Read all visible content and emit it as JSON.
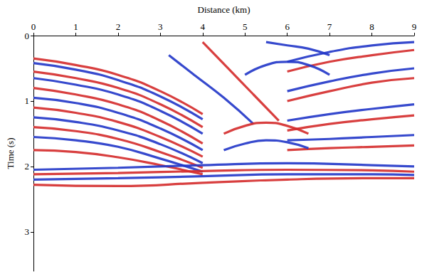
{
  "chart_data": {
    "type": "line",
    "xlabel": "Distance (km)",
    "ylabel": "Time (s)",
    "xlim": [
      0,
      9
    ],
    "ylim": [
      0,
      3.6
    ],
    "xticks": [
      0,
      1,
      2,
      3,
      4,
      5,
      6,
      7,
      8,
      9
    ],
    "yticks": [
      0,
      1,
      2,
      3
    ],
    "grid": false,
    "series": [
      {
        "color": "#d42a2a",
        "x": [
          0,
          1,
          2,
          3,
          4
        ],
        "values": [
          0.35,
          0.45,
          0.6,
          0.85,
          1.2
        ]
      },
      {
        "color": "#2035c8",
        "x": [
          0,
          1,
          2,
          3,
          4
        ],
        "values": [
          0.42,
          0.52,
          0.68,
          0.93,
          1.28
        ]
      },
      {
        "color": "#d42a2a",
        "x": [
          0,
          1,
          2,
          3,
          4
        ],
        "values": [
          0.55,
          0.65,
          0.8,
          1.05,
          1.4
        ]
      },
      {
        "color": "#2035c8",
        "x": [
          0,
          1,
          2,
          3,
          4
        ],
        "values": [
          0.65,
          0.75,
          0.9,
          1.15,
          1.5
        ]
      },
      {
        "color": "#d42a2a",
        "x": [
          0,
          1,
          2,
          3,
          4
        ],
        "values": [
          0.8,
          0.9,
          1.05,
          1.3,
          1.65
        ]
      },
      {
        "color": "#2035c8",
        "x": [
          0,
          1,
          2,
          3,
          4
        ],
        "values": [
          0.95,
          1.03,
          1.18,
          1.42,
          1.75
        ]
      },
      {
        "color": "#d42a2a",
        "x": [
          0,
          1,
          2,
          3,
          4
        ],
        "values": [
          1.1,
          1.18,
          1.32,
          1.55,
          1.85
        ]
      },
      {
        "color": "#2035c8",
        "x": [
          0,
          1,
          2,
          3,
          4
        ],
        "values": [
          1.25,
          1.32,
          1.45,
          1.66,
          1.95
        ]
      },
      {
        "color": "#d42a2a",
        "x": [
          0,
          1,
          2,
          3,
          4
        ],
        "values": [
          1.4,
          1.46,
          1.58,
          1.78,
          2.02
        ]
      },
      {
        "color": "#2035c8",
        "x": [
          0,
          1,
          2,
          3,
          4
        ],
        "values": [
          1.55,
          1.6,
          1.7,
          1.88,
          2.08
        ]
      },
      {
        "color": "#d42a2a",
        "x": [
          0,
          1,
          2,
          3,
          4
        ],
        "values": [
          1.75,
          1.78,
          1.86,
          1.98,
          2.12
        ]
      },
      {
        "color": "#2035c8",
        "x": [
          0,
          2,
          4,
          6,
          8,
          9
        ],
        "values": [
          2.05,
          2.02,
          1.98,
          1.95,
          1.98,
          2.0
        ]
      },
      {
        "color": "#d42a2a",
        "x": [
          0,
          2,
          4,
          6,
          8,
          9
        ],
        "values": [
          2.12,
          2.1,
          2.07,
          2.05,
          2.06,
          2.08
        ]
      },
      {
        "color": "#2035c8",
        "x": [
          0,
          2,
          4,
          6,
          8,
          9
        ],
        "values": [
          2.2,
          2.18,
          2.15,
          2.12,
          2.12,
          2.13
        ]
      },
      {
        "color": "#d42a2a",
        "x": [
          0,
          2,
          4,
          6,
          8,
          9
        ],
        "values": [
          2.28,
          2.3,
          2.25,
          2.2,
          2.18,
          2.18
        ]
      },
      {
        "color": "#2035c8",
        "x": [
          6,
          7,
          8,
          9
        ],
        "values": [
          0.4,
          0.25,
          0.15,
          0.1
        ]
      },
      {
        "color": "#d42a2a",
        "x": [
          6,
          7,
          8,
          9
        ],
        "values": [
          0.55,
          0.4,
          0.3,
          0.22
        ]
      },
      {
        "color": "#2035c8",
        "x": [
          6,
          7,
          8,
          9
        ],
        "values": [
          0.85,
          0.7,
          0.58,
          0.5
        ]
      },
      {
        "color": "#d42a2a",
        "x": [
          6,
          7,
          8,
          9
        ],
        "values": [
          1.0,
          0.85,
          0.72,
          0.65
        ]
      },
      {
        "color": "#2035c8",
        "x": [
          6,
          7,
          8,
          9
        ],
        "values": [
          1.3,
          1.2,
          1.12,
          1.05
        ]
      },
      {
        "color": "#d42a2a",
        "x": [
          6,
          7,
          8,
          9
        ],
        "values": [
          1.45,
          1.35,
          1.28,
          1.22
        ]
      },
      {
        "color": "#2035c8",
        "x": [
          6,
          7,
          8,
          9
        ],
        "values": [
          1.6,
          1.58,
          1.55,
          1.52
        ]
      },
      {
        "color": "#d42a2a",
        "x": [
          6,
          7,
          8,
          9
        ],
        "values": [
          1.75,
          1.72,
          1.7,
          1.68
        ]
      },
      {
        "color": "#2035c8",
        "x": [
          3.2,
          3.8,
          4.5,
          5.2
        ],
        "values": [
          0.3,
          0.6,
          0.95,
          1.35
        ]
      },
      {
        "color": "#d42a2a",
        "x": [
          4,
          4.6,
          5.2,
          5.8
        ],
        "values": [
          0.1,
          0.5,
          0.9,
          1.3
        ]
      },
      {
        "color": "#2035c8",
        "x": [
          5.0,
          5.5,
          6,
          6.5,
          7
        ],
        "values": [
          0.6,
          0.45,
          0.4,
          0.45,
          0.6
        ]
      },
      {
        "color": "#d42a2a",
        "x": [
          4.5,
          5,
          5.5,
          6,
          6.5
        ],
        "values": [
          1.5,
          1.38,
          1.33,
          1.38,
          1.5
        ]
      },
      {
        "color": "#2035c8",
        "x": [
          4.5,
          5,
          5.5,
          6,
          6.5
        ],
        "values": [
          1.75,
          1.65,
          1.6,
          1.63,
          1.72
        ]
      },
      {
        "color": "#2035c8",
        "x": [
          5.5,
          6,
          6.5,
          7
        ],
        "values": [
          0.1,
          0.15,
          0.2,
          0.3
        ]
      }
    ]
  }
}
